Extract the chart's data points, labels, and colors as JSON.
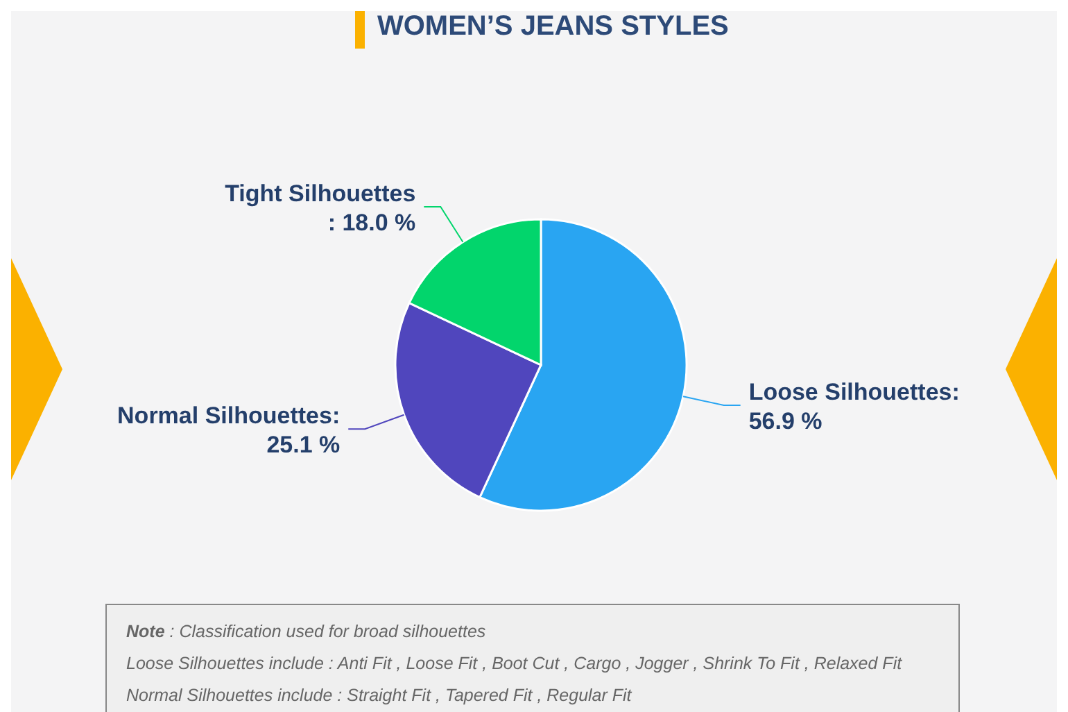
{
  "chart_data": {
    "type": "pie",
    "title": "WOMEN’S JEANS STYLES",
    "categories": [
      "Loose Silhouettes",
      "Normal Silhouettes",
      "Tight Silhouettes"
    ],
    "values": [
      56.9,
      25.1,
      18.0
    ],
    "colors": [
      "#29a5f2",
      "#5046bd",
      "#02d56c"
    ],
    "value_labels": [
      ":\n56.9 %",
      ":\n25.1 %",
      "\n: 18.0 %"
    ],
    "legend": false,
    "annotations": [
      "Note : Classification used for broad silhouettes",
      "Loose Silhouettes include : Anti Fit , Loose Fit , Boot Cut , Cargo , Jogger , Shrink To Fit , Relaxed Fit",
      "Normal Silhouettes include : Straight Fit , Tapered Fit , Regular Fit"
    ]
  }
}
